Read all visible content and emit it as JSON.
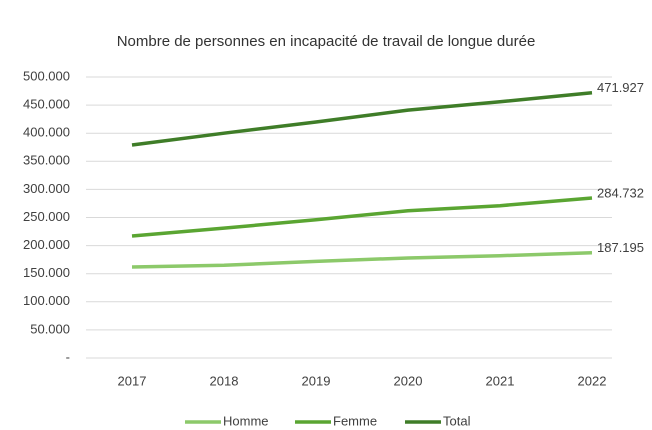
{
  "chart_data": {
    "type": "line",
    "title": "Nombre de personnes en incapacité de travail de longue durée",
    "categories": [
      "2017",
      "2018",
      "2019",
      "2020",
      "2021",
      "2022"
    ],
    "series": [
      {
        "name": "Homme",
        "color": "#8cc96a",
        "values": [
          162000,
          165000,
          172000,
          178000,
          182000,
          187195
        ],
        "value_labels": [
          null,
          null,
          null,
          null,
          null,
          "187.195"
        ]
      },
      {
        "name": "Femme",
        "color": "#5aa532",
        "values": [
          217000,
          231000,
          246000,
          262000,
          271000,
          284732
        ],
        "value_labels": [
          null,
          null,
          null,
          null,
          null,
          "284.732"
        ]
      },
      {
        "name": "Total",
        "color": "#3f7d28",
        "values": [
          379000,
          400000,
          420000,
          441000,
          456000,
          471927
        ],
        "value_labels": [
          null,
          null,
          null,
          null,
          null,
          "471.927"
        ]
      }
    ],
    "ylim": [
      0,
      500000
    ],
    "yticks": [
      {
        "value": 0,
        "label": "-"
      },
      {
        "value": 50000,
        "label": "50.000"
      },
      {
        "value": 100000,
        "label": "100.000"
      },
      {
        "value": 150000,
        "label": "150.000"
      },
      {
        "value": 200000,
        "label": "200.000"
      },
      {
        "value": 250000,
        "label": "250.000"
      },
      {
        "value": 300000,
        "label": "300.000"
      },
      {
        "value": 350000,
        "label": "350.000"
      },
      {
        "value": 400000,
        "label": "400.000"
      },
      {
        "value": 450000,
        "label": "450.000"
      },
      {
        "value": 500000,
        "label": "500.000"
      }
    ],
    "grid": true,
    "legend": "bottom"
  }
}
